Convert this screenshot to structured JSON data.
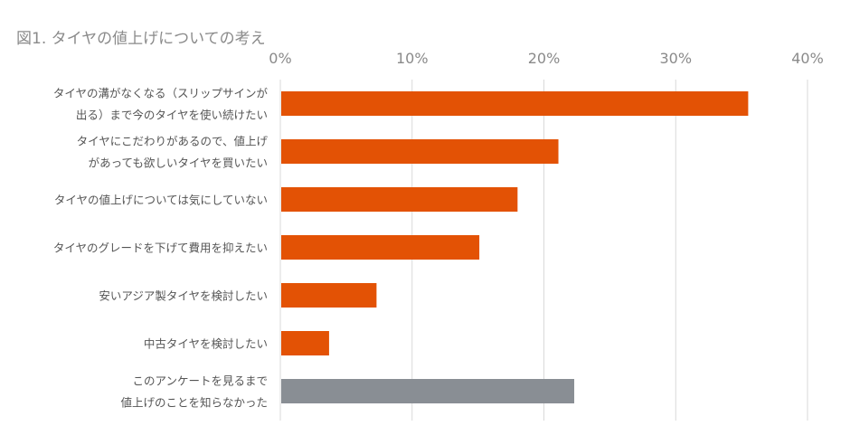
{
  "chart_data": {
    "type": "bar",
    "orientation": "horizontal",
    "title": "図1. タイヤの値上げについての考え",
    "x_axis_position": "top",
    "xlim": [
      0,
      40
    ],
    "x_ticks": [
      "0%",
      "10%",
      "20%",
      "30%",
      "40%"
    ],
    "grid": true,
    "categories": [
      [
        "タイヤの溝がなくなる（スリップサインが",
        "出る）まで今のタイヤを使い続けたい"
      ],
      [
        "タイヤにこだわりがあるので、値上げ",
        "があっても欲しいタイヤを買いたい"
      ],
      [
        "タイヤの値上げについては気にしていない"
      ],
      [
        "タイヤのグレードを下げて費用を抑えたい"
      ],
      [
        "安いアジア製タイヤを検討したい"
      ],
      [
        "中古タイヤを検討したい"
      ],
      [
        "このアンケートを見るまで",
        "値上げのことを知らなかった"
      ]
    ],
    "values": [
      35.5,
      21.1,
      18.0,
      15.1,
      7.3,
      3.7,
      22.3
    ],
    "colors": [
      "#e35205",
      "#e35205",
      "#e35205",
      "#e35205",
      "#e35205",
      "#e35205",
      "#898e94"
    ],
    "gridline_color": "#d9d9d9"
  }
}
